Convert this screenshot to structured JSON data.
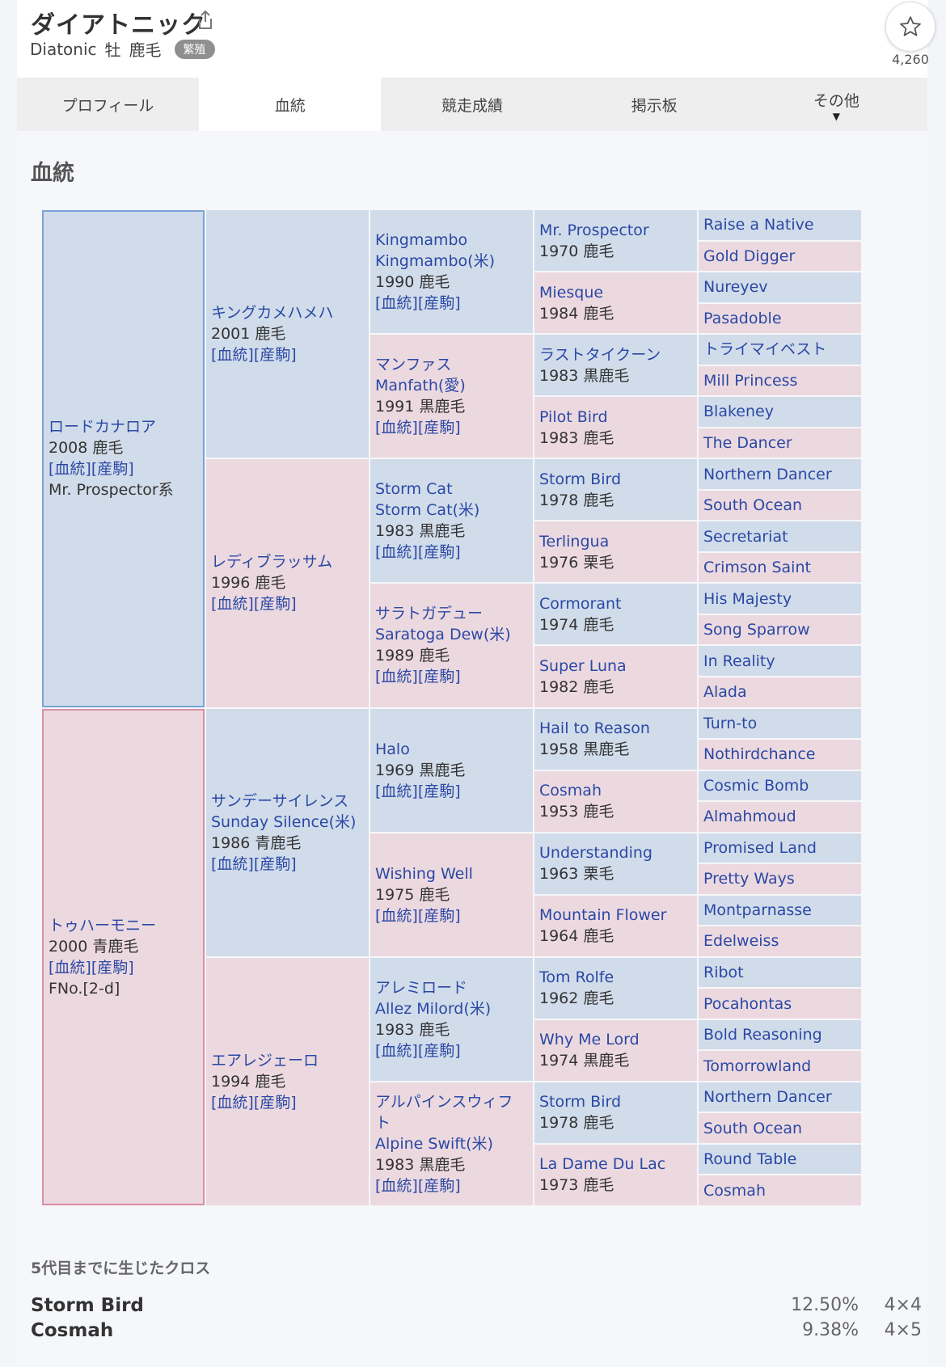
{
  "header": {
    "name": "ダイアトニック",
    "english_name": "Diatonic",
    "sex": "牡",
    "coat": "鹿毛",
    "badge": "繁殖",
    "favorite_count": "4,260"
  },
  "tabs": [
    {
      "label": "プロフィール"
    },
    {
      "label": "血統"
    },
    {
      "label": "競走成績"
    },
    {
      "label": "掲示板"
    },
    {
      "label": "その他"
    }
  ],
  "section_title": "血統",
  "links": {
    "pedigree": "[血統]",
    "offspring": "[産駒]"
  },
  "pedigree": {
    "g1": [
      {
        "name": "ロードカナロア",
        "year": "2008 鹿毛",
        "extra": "Mr. Prospector系"
      },
      {
        "name": "トゥハーモニー",
        "year": "2000 青鹿毛",
        "extra": "FNo.[2-d]"
      }
    ],
    "g2": [
      {
        "name": "キングカメハメハ",
        "year": "2001 鹿毛"
      },
      {
        "name": "レディブラッサム",
        "year": "1996 鹿毛"
      },
      {
        "name": "サンデーサイレンス",
        "alt": "Sunday Silence(米)",
        "year": "1986 青鹿毛"
      },
      {
        "name": "エアレジェーロ",
        "year": "1994 鹿毛"
      }
    ],
    "g3": [
      {
        "name": "Kingmambo",
        "alt": "Kingmambo(米)",
        "year": "1990 鹿毛"
      },
      {
        "name": "マンファス",
        "alt": "Manfath(愛)",
        "year": "1991 黒鹿毛"
      },
      {
        "name": "Storm Cat",
        "alt": "Storm Cat(米)",
        "year": "1983 黒鹿毛"
      },
      {
        "name": "サラトガデュー",
        "alt": "Saratoga Dew(米)",
        "year": "1989 鹿毛"
      },
      {
        "name": "Halo",
        "year": "1969 黒鹿毛"
      },
      {
        "name": "Wishing Well",
        "year": "1975 鹿毛"
      },
      {
        "name": "アレミロード",
        "alt": "Allez Milord(米)",
        "year": "1983 鹿毛"
      },
      {
        "name": "アルパインスウィフト",
        "alt": "Alpine Swift(米)",
        "year": "1983 黒鹿毛"
      }
    ],
    "g4": [
      {
        "name": "Mr. Prospector",
        "year": "1970 鹿毛"
      },
      {
        "name": "Miesque",
        "year": "1984 鹿毛"
      },
      {
        "name": "ラストタイクーン",
        "year": "1983 黒鹿毛"
      },
      {
        "name": "Pilot Bird",
        "year": "1983 鹿毛"
      },
      {
        "name": "Storm Bird",
        "year": "1978 鹿毛"
      },
      {
        "name": "Terlingua",
        "year": "1976 栗毛"
      },
      {
        "name": "Cormorant",
        "year": "1974 鹿毛"
      },
      {
        "name": "Super Luna",
        "year": "1982 鹿毛"
      },
      {
        "name": "Hail to Reason",
        "year": "1958 黒鹿毛"
      },
      {
        "name": "Cosmah",
        "year": "1953 鹿毛"
      },
      {
        "name": "Understanding",
        "year": "1963 栗毛"
      },
      {
        "name": "Mountain Flower",
        "year": "1964 鹿毛"
      },
      {
        "name": "Tom Rolfe",
        "year": "1962 鹿毛"
      },
      {
        "name": "Why Me Lord",
        "year": "1974 黒鹿毛"
      },
      {
        "name": "Storm Bird",
        "year": "1978 鹿毛"
      },
      {
        "name": "La Dame Du Lac",
        "year": "1973 鹿毛"
      }
    ],
    "g5": [
      "Raise a Native",
      "Gold Digger",
      "Nureyev",
      "Pasadoble",
      "トライマイベスト",
      "Mill Princess",
      "Blakeney",
      "The Dancer",
      "Northern Dancer",
      "South Ocean",
      "Secretariat",
      "Crimson Saint",
      "His Majesty",
      "Song Sparrow",
      "In Reality",
      "Alada",
      "Turn-to",
      "Nothirdchance",
      "Cosmic Bomb",
      "Almahmoud",
      "Promised Land",
      "Pretty Ways",
      "Montparnasse",
      "Edelweiss",
      "Ribot",
      "Pocahontas",
      "Bold Reasoning",
      "Tomorrowland",
      "Northern Dancer",
      "South Ocean",
      "Round Table",
      "Cosmah"
    ]
  },
  "crosses": {
    "title": "5代目までに生じたクロス",
    "rows": [
      {
        "name": "Storm Bird",
        "pct": "12.50%",
        "gen": "4×4"
      },
      {
        "name": "Cosmah",
        "pct": "9.38%",
        "gen": "4×5"
      }
    ]
  },
  "colors": {
    "male": "#d1dcea",
    "female": "#ecd9df",
    "link": "#2a48a5"
  }
}
